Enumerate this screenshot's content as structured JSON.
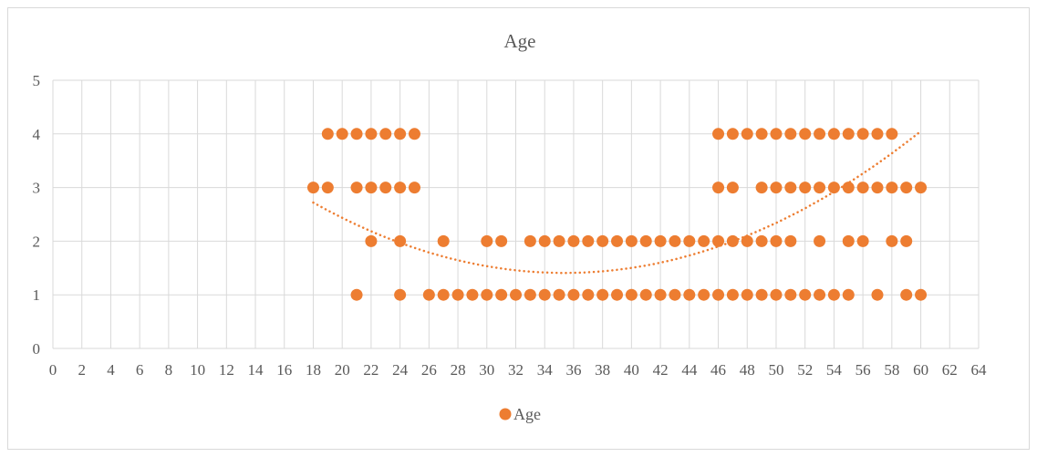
{
  "chart_data": {
    "type": "scatter",
    "title": "Age",
    "xlim": [
      0,
      64
    ],
    "ylim": [
      0,
      5
    ],
    "x_ticks": [
      0,
      2,
      4,
      6,
      8,
      10,
      12,
      14,
      16,
      18,
      20,
      22,
      24,
      26,
      28,
      30,
      32,
      34,
      36,
      38,
      40,
      42,
      44,
      46,
      48,
      50,
      52,
      54,
      56,
      58,
      60,
      62,
      64
    ],
    "y_ticks": [
      0,
      1,
      2,
      3,
      4,
      5
    ],
    "grid": true,
    "legend_position": "bottom",
    "colors": {
      "series": "#ED7D31",
      "grid": "#d9d9d9",
      "axis_text": "#595959"
    },
    "series": [
      {
        "name": "Age",
        "points": [
          [
            19,
            4
          ],
          [
            20,
            4
          ],
          [
            21,
            4
          ],
          [
            22,
            4
          ],
          [
            23,
            4
          ],
          [
            24,
            4
          ],
          [
            25,
            4
          ],
          [
            46,
            4
          ],
          [
            47,
            4
          ],
          [
            48,
            4
          ],
          [
            49,
            4
          ],
          [
            50,
            4
          ],
          [
            51,
            4
          ],
          [
            52,
            4
          ],
          [
            53,
            4
          ],
          [
            54,
            4
          ],
          [
            55,
            4
          ],
          [
            56,
            4
          ],
          [
            57,
            4
          ],
          [
            58,
            4
          ],
          [
            18,
            3
          ],
          [
            19,
            3
          ],
          [
            21,
            3
          ],
          [
            22,
            3
          ],
          [
            23,
            3
          ],
          [
            24,
            3
          ],
          [
            25,
            3
          ],
          [
            46,
            3
          ],
          [
            47,
            3
          ],
          [
            49,
            3
          ],
          [
            50,
            3
          ],
          [
            51,
            3
          ],
          [
            52,
            3
          ],
          [
            53,
            3
          ],
          [
            54,
            3
          ],
          [
            55,
            3
          ],
          [
            56,
            3
          ],
          [
            57,
            3
          ],
          [
            58,
            3
          ],
          [
            59,
            3
          ],
          [
            60,
            3
          ],
          [
            22,
            2
          ],
          [
            24,
            2
          ],
          [
            27,
            2
          ],
          [
            30,
            2
          ],
          [
            31,
            2
          ],
          [
            33,
            2
          ],
          [
            34,
            2
          ],
          [
            35,
            2
          ],
          [
            36,
            2
          ],
          [
            37,
            2
          ],
          [
            38,
            2
          ],
          [
            39,
            2
          ],
          [
            40,
            2
          ],
          [
            41,
            2
          ],
          [
            42,
            2
          ],
          [
            43,
            2
          ],
          [
            44,
            2
          ],
          [
            45,
            2
          ],
          [
            46,
            2
          ],
          [
            47,
            2
          ],
          [
            48,
            2
          ],
          [
            49,
            2
          ],
          [
            50,
            2
          ],
          [
            51,
            2
          ],
          [
            53,
            2
          ],
          [
            55,
            2
          ],
          [
            56,
            2
          ],
          [
            58,
            2
          ],
          [
            59,
            2
          ],
          [
            21,
            1
          ],
          [
            24,
            1
          ],
          [
            26,
            1
          ],
          [
            27,
            1
          ],
          [
            28,
            1
          ],
          [
            29,
            1
          ],
          [
            30,
            1
          ],
          [
            31,
            1
          ],
          [
            32,
            1
          ],
          [
            33,
            1
          ],
          [
            34,
            1
          ],
          [
            35,
            1
          ],
          [
            36,
            1
          ],
          [
            37,
            1
          ],
          [
            38,
            1
          ],
          [
            39,
            1
          ],
          [
            40,
            1
          ],
          [
            41,
            1
          ],
          [
            42,
            1
          ],
          [
            43,
            1
          ],
          [
            44,
            1
          ],
          [
            45,
            1
          ],
          [
            46,
            1
          ],
          [
            47,
            1
          ],
          [
            48,
            1
          ],
          [
            49,
            1
          ],
          [
            50,
            1
          ],
          [
            51,
            1
          ],
          [
            52,
            1
          ],
          [
            53,
            1
          ],
          [
            54,
            1
          ],
          [
            55,
            1
          ],
          [
            57,
            1
          ],
          [
            59,
            1
          ],
          [
            60,
            1
          ]
        ]
      }
    ],
    "trendline": {
      "type": "polynomial-2",
      "style": "dotted",
      "x_range": [
        18,
        60
      ],
      "y_at_x": [
        [
          18,
          2.72
        ],
        [
          36,
          1.41
        ],
        [
          60,
          4.05
        ]
      ]
    }
  }
}
